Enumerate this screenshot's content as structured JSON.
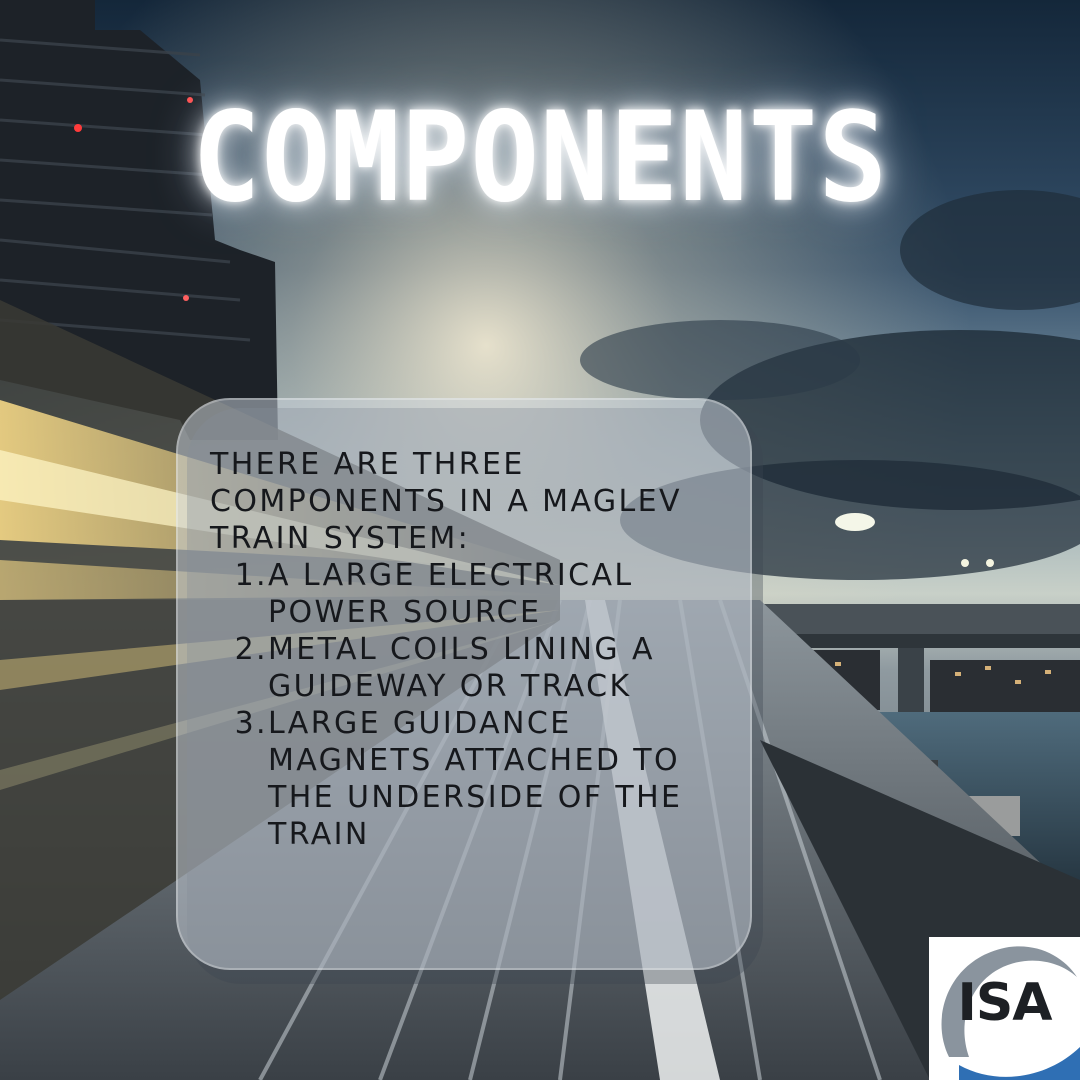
{
  "title": "COMPONENTS",
  "panel": {
    "intro": "THERE ARE THREE COMPONENTS IN A MAGLEV TRAIN SYSTEM:",
    "items": [
      {
        "number": "1.",
        "text": "A LARGE ELECTRICAL POWER SOURCE"
      },
      {
        "number": "2.",
        "text": "METAL COILS LINING A GUIDEWAY OR TRACK"
      },
      {
        "number": "3.",
        "text": "LARGE GUIDANCE MAGNETS ATTACHED TO THE UNDERSIDE OF THE TRAIN"
      }
    ]
  },
  "logo": {
    "text": "ISA"
  },
  "colors": {
    "title": "#ffffff",
    "panel_text": "#16181c",
    "logo_blue": "#2f6fb4",
    "logo_gray": "#8a949e"
  }
}
